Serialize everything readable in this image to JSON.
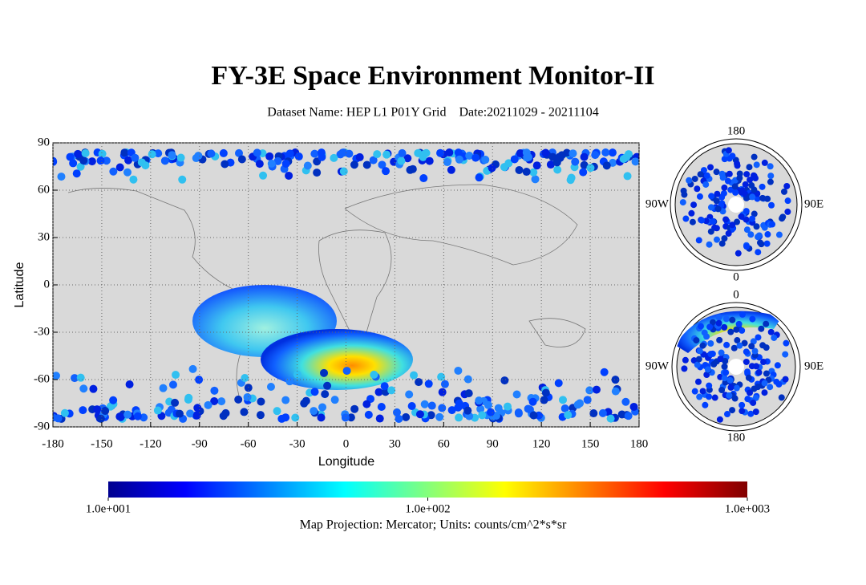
{
  "header": {
    "title": "FY-3E Space Environment Monitor-II",
    "subtitle": "Dataset Name: HEP L1 P01Y Grid    Date:20211029 - 20211104"
  },
  "map": {
    "xlabel": "Longitude",
    "ylabel": "Latitude",
    "xlim": [
      -180,
      180
    ],
    "ylim": [
      -90,
      90
    ],
    "xticks": [
      -180,
      -150,
      -120,
      -90,
      -60,
      -30,
      0,
      30,
      60,
      90,
      120,
      150,
      180
    ],
    "yticks": [
      -90,
      -60,
      -30,
      0,
      30,
      60,
      90
    ],
    "grid": true
  },
  "polar": [
    {
      "top": "180",
      "bottom": "0",
      "left": "90W",
      "right": "90E"
    },
    {
      "top": "0",
      "bottom": "180",
      "left": "90W",
      "right": "90E"
    }
  ],
  "colorbar": {
    "scale": "log",
    "lim": [
      10,
      1000
    ],
    "ticks": [
      {
        "value": 10,
        "label": "1.0e+001"
      },
      {
        "value": 100,
        "label": "1.0e+002"
      },
      {
        "value": 1000,
        "label": "1.0e+003"
      }
    ]
  },
  "note": "Map Projection: Mercator; Units: counts/cm^2*s*sr"
}
